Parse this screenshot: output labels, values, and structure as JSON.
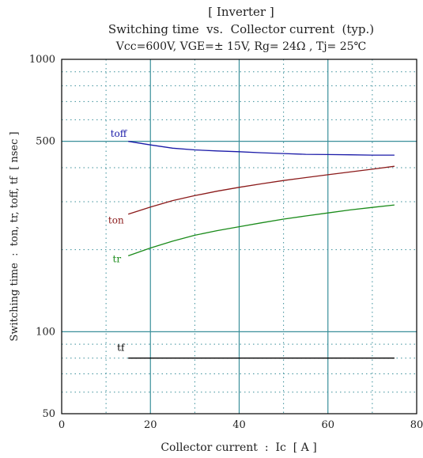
{
  "chart_data": {
    "type": "line",
    "title": "[ Inverter ]",
    "subtitle": "Switching time  vs.  Collector current  (typ.)",
    "conditions": "Vcc=600V, VGE=± 15V, Rg= 24Ω , Tj= 25℃",
    "xlabel": "Collector current  :  Ic  [ A ]",
    "ylabel": "Switching time  :  ton, tr, toff, tf  [ nsec ]",
    "xlim": [
      0,
      80
    ],
    "ylim": [
      50,
      1000
    ],
    "yscale": "log",
    "x_ticks": [
      0,
      20,
      40,
      60,
      80
    ],
    "x_tick_labels": [
      "0",
      "20",
      "40",
      "60",
      "80"
    ],
    "y_tick_labels": [
      {
        "value": 50,
        "label": "50"
      },
      {
        "value": 100,
        "label": "100"
      },
      {
        "value": 500,
        "label": "500"
      },
      {
        "value": 1000,
        "label": "1000"
      }
    ],
    "grid": true,
    "series": [
      {
        "name": "toff",
        "color": "#1a1aa8",
        "x": [
          15,
          20,
          25,
          30,
          35,
          40,
          45,
          50,
          55,
          60,
          65,
          70,
          75
        ],
        "y": [
          500,
          485,
          472,
          465,
          461,
          458,
          454,
          451,
          448,
          447,
          446,
          445,
          445
        ]
      },
      {
        "name": "ton",
        "color": "#8b1a1a",
        "x": [
          15,
          20,
          25,
          30,
          35,
          40,
          45,
          50,
          55,
          60,
          65,
          70,
          75
        ],
        "y": [
          270,
          287,
          303,
          316,
          328,
          339,
          349,
          359,
          368,
          377,
          386,
          395,
          405
        ]
      },
      {
        "name": "tr",
        "color": "#1a8b1a",
        "x": [
          15,
          20,
          25,
          30,
          35,
          40,
          45,
          50,
          55,
          60,
          65,
          70,
          75
        ],
        "y": [
          190,
          203,
          215,
          226,
          235,
          243,
          251,
          259,
          266,
          273,
          280,
          286,
          292
        ]
      },
      {
        "name": "tf",
        "color": "#000000",
        "x": [
          15,
          20,
          25,
          30,
          35,
          40,
          45,
          50,
          55,
          60,
          65,
          70,
          75
        ],
        "y": [
          80,
          80,
          80,
          80,
          80,
          80,
          80,
          80,
          80,
          80,
          80,
          80,
          80
        ]
      }
    ],
    "labels": [
      {
        "text": "toff",
        "x": 11,
        "y": 520,
        "color": "#1a1aa8"
      },
      {
        "text": "ton",
        "x": 10.5,
        "y": 250,
        "color": "#8b1a1a"
      },
      {
        "text": "tr",
        "x": 11.5,
        "y": 180,
        "color": "#1a8b1a"
      },
      {
        "text": "tf",
        "x": 12.5,
        "y": 85,
        "color": "#000000"
      }
    ],
    "colors": {
      "grid_major": "#3a8f9a",
      "grid_minor": "#3a8f9a",
      "frame": "#000000"
    }
  }
}
